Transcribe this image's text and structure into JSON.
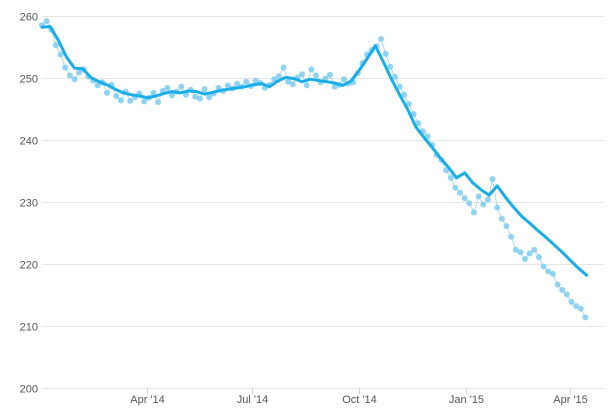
{
  "chart_data": {
    "type": "scatter",
    "title": "",
    "xlabel": "",
    "ylabel": "",
    "ylim": [
      200,
      260
    ],
    "y_ticks": [
      200,
      210,
      220,
      230,
      240,
      250,
      260
    ],
    "x_range": [
      "2014-01-01",
      "2015-04-30"
    ],
    "x_ticks": [
      {
        "date": "2014-04-01",
        "label": "Apr '14"
      },
      {
        "date": "2014-07-01",
        "label": "Jul '14"
      },
      {
        "date": "2014-10-01",
        "label": "Oct '14"
      },
      {
        "date": "2015-01-01",
        "label": "Jan '15"
      },
      {
        "date": "2015-04-01",
        "label": "Apr '15"
      }
    ],
    "grid": "horizontal",
    "legend": "none",
    "colors": {
      "points": "#7fcdf0",
      "point_connector": "#a9dcf3",
      "trend": "#1aaee8",
      "grid": "#e6e6e6",
      "tick_text": "#555555"
    },
    "series": [
      {
        "kind": "points",
        "x": [
          "2014-01-01",
          "2014-01-05",
          "2014-01-09",
          "2014-01-13",
          "2014-01-17",
          "2014-01-21",
          "2014-01-25",
          "2014-01-29",
          "2014-02-02",
          "2014-02-06",
          "2014-02-10",
          "2014-02-14",
          "2014-02-18",
          "2014-02-22",
          "2014-02-26",
          "2014-03-02",
          "2014-03-06",
          "2014-03-10",
          "2014-03-14",
          "2014-03-18",
          "2014-03-22",
          "2014-03-26",
          "2014-03-30",
          "2014-04-03",
          "2014-04-07",
          "2014-04-11",
          "2014-04-15",
          "2014-04-19",
          "2014-04-23",
          "2014-04-27",
          "2014-05-01",
          "2014-05-05",
          "2014-05-09",
          "2014-05-13",
          "2014-05-17",
          "2014-05-21",
          "2014-05-25",
          "2014-05-29",
          "2014-06-02",
          "2014-06-06",
          "2014-06-10",
          "2014-06-14",
          "2014-06-18",
          "2014-06-22",
          "2014-06-26",
          "2014-06-30",
          "2014-07-04",
          "2014-07-08",
          "2014-07-12",
          "2014-07-16",
          "2014-07-20",
          "2014-07-24",
          "2014-07-28",
          "2014-08-01",
          "2014-08-05",
          "2014-08-09",
          "2014-08-13",
          "2014-08-17",
          "2014-08-21",
          "2014-08-25",
          "2014-08-29",
          "2014-09-02",
          "2014-09-06",
          "2014-09-10",
          "2014-09-14",
          "2014-09-18",
          "2014-09-22",
          "2014-09-26",
          "2014-09-30",
          "2014-10-04",
          "2014-10-08",
          "2014-10-12",
          "2014-10-16",
          "2014-10-20",
          "2014-10-24",
          "2014-10-28",
          "2014-11-01",
          "2014-11-05",
          "2014-11-09",
          "2014-11-13",
          "2014-11-17",
          "2014-11-21",
          "2014-11-25",
          "2014-11-29",
          "2014-12-03",
          "2014-12-07",
          "2014-12-11",
          "2014-12-15",
          "2014-12-19",
          "2014-12-23",
          "2014-12-27",
          "2014-12-31",
          "2015-01-04",
          "2015-01-08",
          "2015-01-12",
          "2015-01-16",
          "2015-01-20",
          "2015-01-24",
          "2015-01-28",
          "2015-02-01",
          "2015-02-05",
          "2015-02-09",
          "2015-02-13",
          "2015-02-17",
          "2015-02-21",
          "2015-02-25",
          "2015-03-01",
          "2015-03-05",
          "2015-03-09",
          "2015-03-13",
          "2015-03-17",
          "2015-03-21",
          "2015-03-25",
          "2015-03-29",
          "2015-04-02",
          "2015-04-06",
          "2015-04-10",
          "2015-04-14"
        ],
        "y": [
          258.5,
          259.2,
          257.8,
          255.3,
          253.8,
          251.7,
          250.4,
          249.8,
          250.9,
          251.4,
          250.2,
          249.6,
          248.8,
          249.3,
          247.6,
          248.9,
          247.1,
          246.4,
          247.8,
          246.3,
          246.9,
          247.5,
          246.2,
          246.8,
          247.6,
          246.1,
          247.9,
          248.4,
          247.2,
          247.8,
          248.6,
          247.3,
          248.1,
          247.0,
          246.7,
          248.2,
          246.9,
          247.5,
          248.4,
          247.9,
          248.8,
          248.3,
          249.1,
          248.6,
          249.4,
          248.7,
          249.6,
          249.2,
          248.4,
          248.9,
          249.8,
          250.3,
          251.7,
          249.4,
          249.0,
          250.1,
          250.6,
          248.8,
          251.4,
          250.4,
          249.3,
          249.9,
          250.5,
          248.6,
          248.9,
          249.8,
          249.1,
          249.3,
          250.8,
          252.4,
          253.8,
          254.5,
          255.1,
          256.3,
          253.9,
          251.8,
          250.2,
          248.6,
          247.3,
          245.8,
          244.2,
          242.7,
          241.4,
          240.6,
          239.2,
          237.6,
          236.8,
          235.1,
          233.9,
          232.3,
          231.5,
          230.6,
          229.8,
          228.3,
          230.9,
          229.6,
          230.4,
          233.7,
          229.1,
          227.3,
          226.1,
          224.4,
          222.3,
          221.9,
          220.8,
          221.7,
          222.3,
          221.1,
          219.6,
          218.8,
          218.4,
          216.7,
          215.8,
          215.1,
          213.9,
          213.2,
          212.8,
          211.4
        ]
      },
      {
        "kind": "trend",
        "x": [
          "2014-01-01",
          "2014-01-08",
          "2014-01-15",
          "2014-01-22",
          "2014-01-29",
          "2014-02-05",
          "2014-02-12",
          "2014-02-19",
          "2014-02-26",
          "2014-03-05",
          "2014-03-12",
          "2014-03-19",
          "2014-03-26",
          "2014-04-02",
          "2014-04-09",
          "2014-04-16",
          "2014-04-23",
          "2014-04-30",
          "2014-05-07",
          "2014-05-14",
          "2014-05-21",
          "2014-05-28",
          "2014-06-04",
          "2014-06-11",
          "2014-06-18",
          "2014-06-25",
          "2014-07-02",
          "2014-07-09",
          "2014-07-16",
          "2014-07-23",
          "2014-07-30",
          "2014-08-06",
          "2014-08-13",
          "2014-08-20",
          "2014-08-27",
          "2014-09-03",
          "2014-09-10",
          "2014-09-17",
          "2014-09-24",
          "2014-10-01",
          "2014-10-08",
          "2014-10-15",
          "2014-10-22",
          "2014-10-29",
          "2014-11-05",
          "2014-11-12",
          "2014-11-19",
          "2014-11-26",
          "2014-12-03",
          "2014-12-10",
          "2014-12-17",
          "2014-12-24",
          "2014-12-31",
          "2015-01-07",
          "2015-01-14",
          "2015-01-21",
          "2015-01-28",
          "2015-02-04",
          "2015-02-11",
          "2015-02-18",
          "2015-02-25",
          "2015-03-04",
          "2015-03-11",
          "2015-03-18",
          "2015-03-25",
          "2015-04-01",
          "2015-04-08",
          "2015-04-15"
        ],
        "y": [
          258.2,
          258.3,
          256.1,
          253.4,
          251.6,
          251.5,
          250.1,
          249.4,
          248.9,
          248.2,
          247.6,
          247.3,
          247.1,
          246.8,
          247.1,
          247.5,
          247.8,
          247.6,
          247.9,
          247.8,
          247.4,
          247.7,
          248.0,
          248.2,
          248.4,
          248.6,
          248.9,
          249.1,
          248.6,
          249.5,
          250.1,
          249.9,
          249.4,
          249.8,
          249.6,
          249.4,
          249.2,
          248.8,
          249.5,
          251.2,
          253.1,
          255.2,
          252.6,
          249.8,
          247.3,
          244.9,
          242.1,
          240.4,
          238.8,
          237.1,
          235.6,
          233.9,
          234.7,
          233.1,
          232.0,
          231.1,
          232.6,
          230.8,
          229.2,
          227.7,
          226.6,
          225.4,
          224.3,
          223.1,
          221.9,
          220.6,
          219.3,
          218.2
        ]
      }
    ]
  }
}
